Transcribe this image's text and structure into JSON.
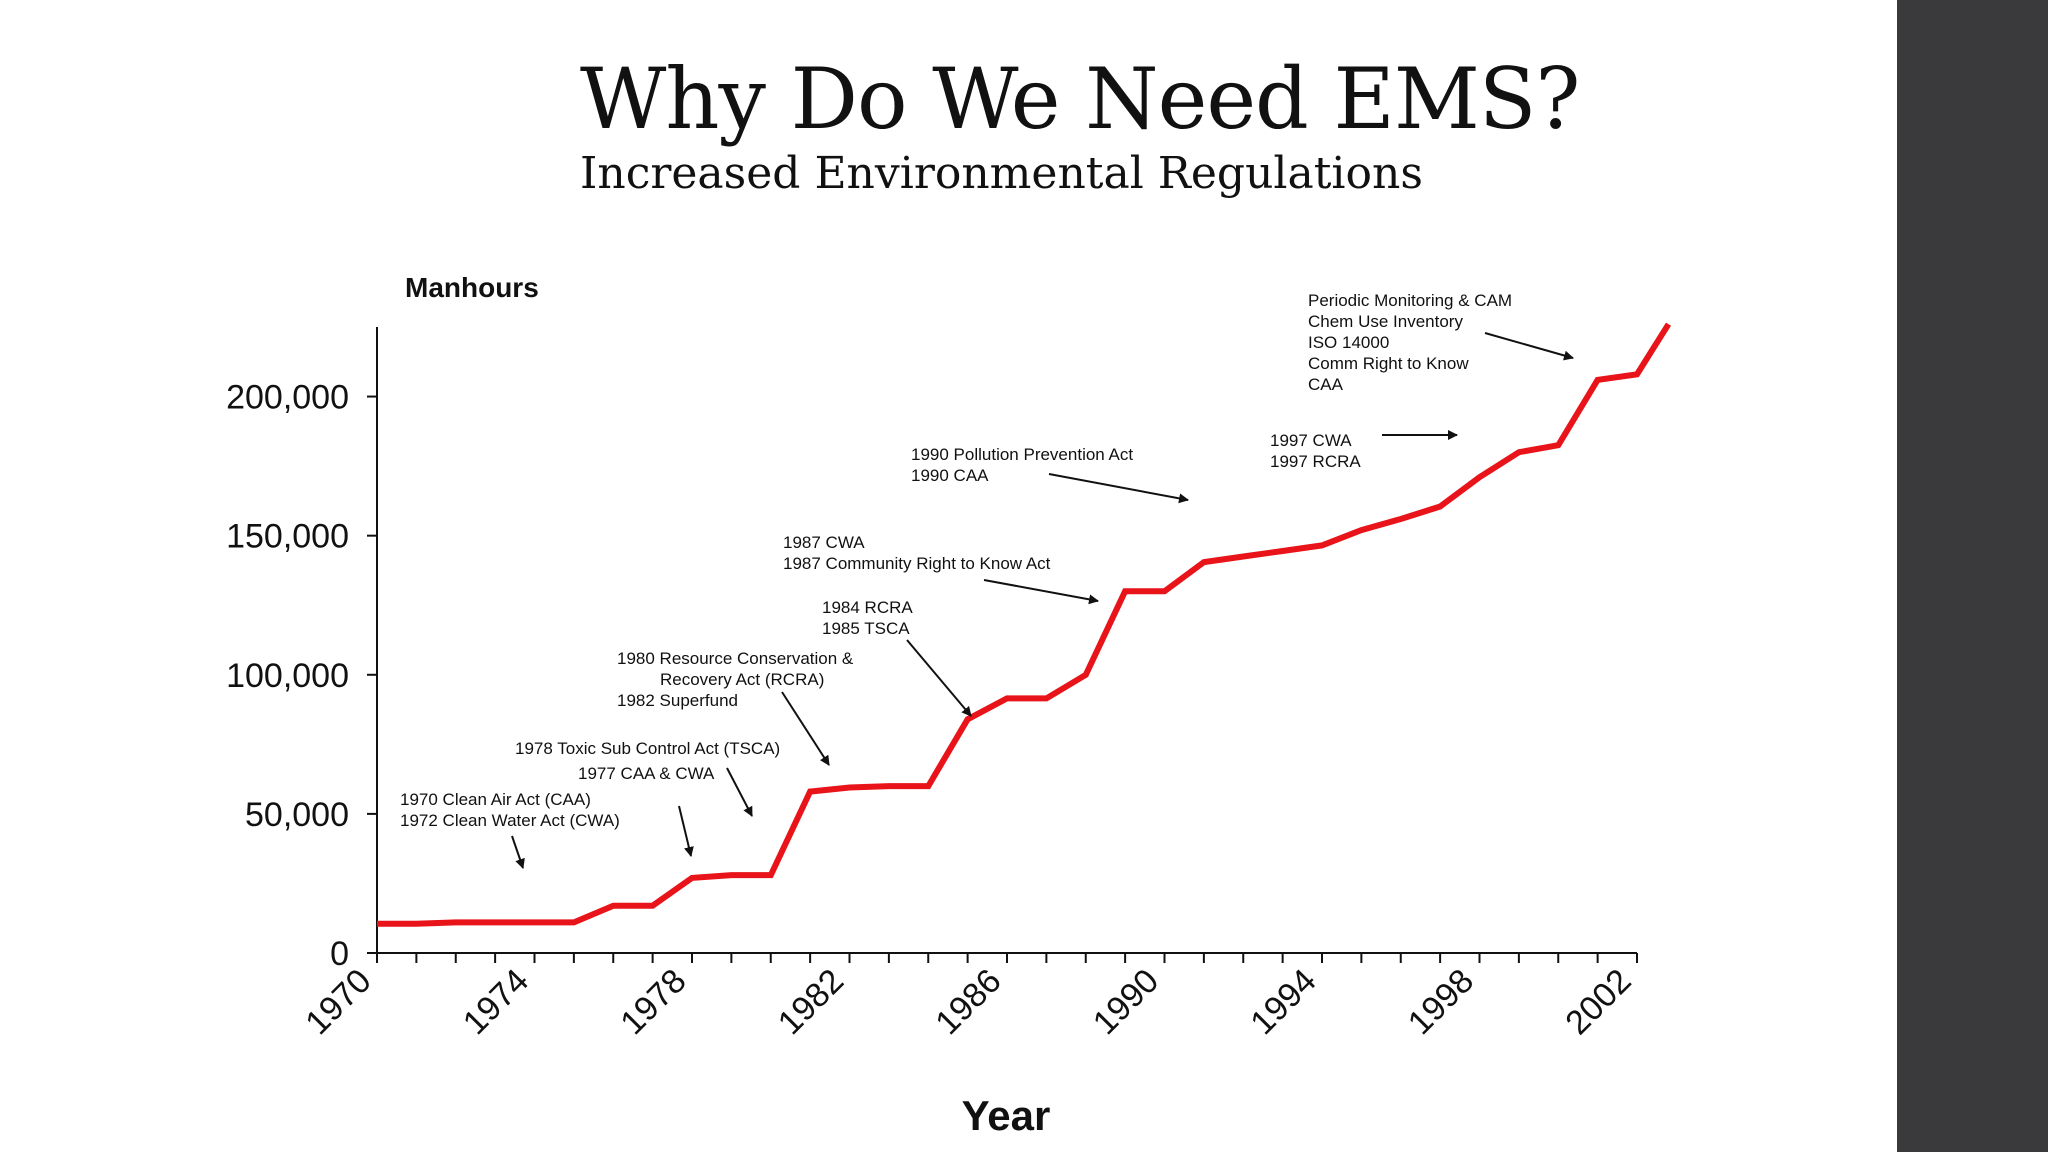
{
  "slide": {
    "title": "Why Do We Need EMS?",
    "subtitle": "Increased Environmental Regulations"
  },
  "colors": {
    "line": "#e8141a",
    "side_bar": "#3a3a3c",
    "text": "#111111"
  },
  "chart_data": {
    "type": "line",
    "ylabel": "Manhours",
    "xlabel": "Year",
    "xlim": [
      1970,
      2002
    ],
    "ylim": [
      0,
      225000
    ],
    "x_tick_labels": [
      "1970",
      "1974",
      "1978",
      "1982",
      "1986",
      "1990",
      "1994",
      "1998",
      "2002"
    ],
    "y_tick_labels": [
      "0",
      "50,000",
      "100,000",
      "150,000",
      "200,000"
    ],
    "y_tick_values": [
      0,
      50000,
      100000,
      150000,
      200000
    ],
    "grid": false,
    "series": [
      {
        "x": [
          1970,
          1971,
          1972,
          1973,
          1974,
          1975,
          1976,
          1977,
          1978,
          1979,
          1980,
          1981,
          1982,
          1983,
          1984,
          1985,
          1986,
          1987,
          1988,
          1989,
          1990,
          1991,
          1992,
          1993,
          1994,
          1995,
          1996,
          1997,
          1998,
          1999,
          2000,
          2001,
          2002,
          2002.8
        ],
        "y": [
          10500,
          10500,
          11000,
          11000,
          11000,
          11000,
          17000,
          17000,
          27000,
          28000,
          28000,
          58000,
          59500,
          60000,
          60000,
          84000,
          91500,
          91500,
          100000,
          130000,
          130000,
          140500,
          142500,
          144500,
          146500,
          152000,
          156000,
          160500,
          171000,
          180000,
          182500,
          206000,
          208000,
          226000
        ]
      }
    ],
    "annotations": [
      {
        "lines": [
          "1970 Clean Air Act (CAA)",
          "1972 Clean Water Act (CWA)"
        ],
        "align": "left"
      },
      {
        "lines": [
          "1977 CAA & CWA"
        ],
        "align": "left"
      },
      {
        "lines": [
          "1978 Toxic Sub Control Act (TSCA)"
        ],
        "align": "left"
      },
      {
        "lines": [
          "1980 Resource Conservation &",
          "Recovery Act (RCRA)",
          "1982 Superfund"
        ],
        "align": "left"
      },
      {
        "lines": [
          "1984 RCRA",
          "1985 TSCA"
        ],
        "align": "left"
      },
      {
        "lines": [
          "1987 CWA",
          "1987 Community Right to Know Act"
        ],
        "align": "left"
      },
      {
        "lines": [
          "1990 Pollution Prevention Act",
          "1990 CAA"
        ],
        "align": "left"
      },
      {
        "lines": [
          "1997 CWA",
          "1997 RCRA"
        ],
        "align": "left"
      },
      {
        "lines": [
          "Periodic Monitoring & CAM",
          "Chem Use Inventory",
          "ISO 14000",
          "Comm Right to Know",
          "CAA"
        ],
        "align": "left"
      }
    ]
  }
}
